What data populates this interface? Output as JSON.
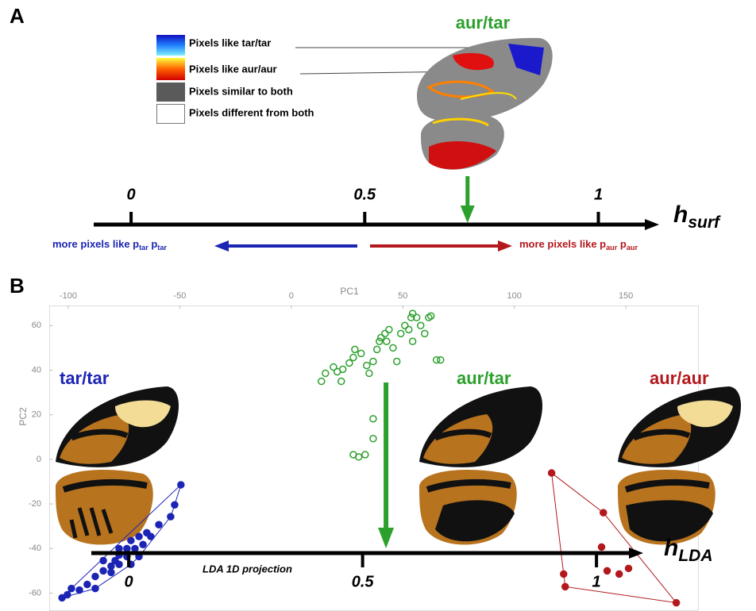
{
  "panel_a": {
    "label": "A",
    "title": "aur/tar",
    "legend": [
      "Pixels like tar/tar",
      "Pixels like aur/aur",
      "Pixels similar to both",
      "Pixels different from both"
    ],
    "axis": {
      "name": "h",
      "sub": "surf",
      "xlim": [
        -0.08,
        1.13
      ],
      "ticks": [
        0,
        0.5,
        1
      ],
      "marker": 0.72
    },
    "left_label": [
      "more pixels like p",
      "tar",
      " p",
      "tar"
    ],
    "right_label": [
      "more pixels like p",
      "aur",
      " p",
      "aur"
    ]
  },
  "chart_data": {
    "type": "scatter",
    "panel_label": "B",
    "x_label": "PC1",
    "y_label": "PC2",
    "xlim": [
      -108,
      182
    ],
    "ylim": [
      -68,
      69
    ],
    "xticks": [
      -100,
      -50,
      0,
      50,
      100,
      150
    ],
    "yticks": [
      60,
      40,
      20,
      0,
      -20,
      -40,
      -60
    ],
    "series": [
      {
        "name": "tar/tar",
        "color": "#1c24b4",
        "filled": true,
        "hull": true,
        "x": [
          -49.5,
          -52.3,
          -54.1,
          -59.4,
          -64.8,
          -68.3,
          -71.9,
          -73.7,
          -77.2,
          -79,
          -80.8,
          -84.3,
          -87.9,
          -91.5,
          -95,
          -98.6,
          -100.4,
          -102.8,
          -70.1,
          -73.7,
          -77.2,
          -80.8,
          -87.9,
          -68.3,
          -71.9,
          -66.5,
          -63,
          -77.2,
          -84.3
        ],
        "y": [
          -11.4,
          -20.4,
          -25.7,
          -29.3,
          -32.9,
          -34.6,
          -36.4,
          -40,
          -42.9,
          -45.4,
          -47.9,
          -50,
          -52.5,
          -56.1,
          -58.6,
          -57.9,
          -60.7,
          -62.1,
          -40,
          -43.6,
          -47.1,
          -50.7,
          -57.9,
          -43.6,
          -47.1,
          -38.2,
          -34.6,
          -40,
          -45.4
        ]
      },
      {
        "name": "aur/tar",
        "color": "#2ca02c",
        "filled": false,
        "hull": false,
        "x": [
          13.5,
          15.3,
          18.9,
          20.6,
          23.1,
          22.4,
          26,
          27.8,
          28.5,
          31.3,
          33.8,
          34.9,
          36.7,
          38.4,
          39.5,
          40.2,
          42,
          42.7,
          43.8,
          45.6,
          47.3,
          49.1,
          50.9,
          52.7,
          53.7,
          54.4,
          56.2,
          58,
          59.8,
          61.6,
          62.6,
          65.1,
          66.9,
          54.4,
          36.7,
          36.7,
          33.1,
          30.2,
          27.8
        ],
        "y": [
          35,
          38.6,
          41.4,
          39.3,
          40.4,
          35,
          43.2,
          45.7,
          49.3,
          47.5,
          42.1,
          38.6,
          43.9,
          49.3,
          52.9,
          54.6,
          56.4,
          52.9,
          58.2,
          50,
          43.9,
          56.4,
          60,
          58.2,
          63.6,
          65.4,
          63.6,
          60,
          56.4,
          63.6,
          64.3,
          44.6,
          44.6,
          52.9,
          18.2,
          9.3,
          2.1,
          1.1,
          2.1
        ]
      },
      {
        "name": "aur/aur",
        "color": "#b3181c",
        "filled": true,
        "hull": true,
        "x": [
          116.7,
          139.9,
          139.1,
          122.1,
          122.8,
          141.6,
          147,
          151.2,
          172.6
        ],
        "y": [
          -6.1,
          -23.9,
          -39.3,
          -51.4,
          -57.1,
          -50,
          -51.4,
          -48.9,
          -64.3
        ]
      }
    ],
    "projection": {
      "name": "h",
      "sub": "LDA",
      "caption": "LDA 1D projection",
      "xlim": [
        -0.08,
        1.1
      ],
      "ticks": [
        0,
        0.5,
        1
      ],
      "marker": 0.55
    }
  }
}
